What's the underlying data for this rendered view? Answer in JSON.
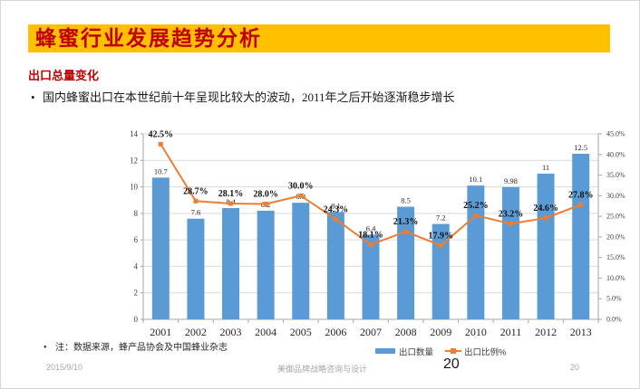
{
  "slide": {
    "title": "蜂蜜行业发展趋势分析",
    "section_heading": "出口总量变化",
    "bullet_text": "国内蜂蜜出口在本世纪前十年呈现比较大的波动，2011年之后开始逐渐稳步增长",
    "note_text": "注：数据来源，蜂产品协会及中国蜂业杂志",
    "footer": {
      "date": "2015/9/10",
      "company": "美御品牌战略咨询与设计",
      "page_number": "20",
      "slide_number": "20"
    },
    "colors": {
      "title_bar_bg": "#FFC000",
      "title_text": "#C00000",
      "section_heading_text": "#C00000",
      "bar_fill": "#5B9BD5",
      "line_stroke": "#ED7D31",
      "gridline": "#D9D9D9",
      "axis": "#A6A6A6"
    }
  },
  "chart_data": {
    "type": "bar+line",
    "subtype": "combo chart: bars on left value axis, line with square markers on right percent axis",
    "categories": [
      "2001",
      "2002",
      "2003",
      "2004",
      "2005",
      "2006",
      "2007",
      "2008",
      "2009",
      "2010",
      "2011",
      "2012",
      "2013"
    ],
    "series": [
      {
        "name": "出口数量",
        "chart": "bar",
        "axis": "left",
        "color": "#5B9BD5",
        "values": [
          10.7,
          7.6,
          8.4,
          8.2,
          8.8,
          8.1,
          6.4,
          8.5,
          7.2,
          10.1,
          9.98,
          11,
          12.5
        ],
        "labels": [
          "10.7",
          "7.6",
          "8.4",
          "8.2",
          "8.8",
          "8.1",
          "6.4",
          "8.5",
          "7.2",
          "10.1",
          "9.98",
          "11",
          "12.5"
        ]
      },
      {
        "name": "出口比例%",
        "chart": "line",
        "axis": "right",
        "color": "#ED7D31",
        "values": [
          42.5,
          28.7,
          28.1,
          28.0,
          30.0,
          24.3,
          18.1,
          21.3,
          17.9,
          25.2,
          23.2,
          24.6,
          27.8
        ],
        "labels": [
          "42.5%",
          "28.7%",
          "28.1%",
          "28.0%",
          "30.0%",
          "24.3%",
          "18.1%",
          "21.3%",
          "17.9%",
          "25.2%",
          "23.2%",
          "24.6%",
          "27.8%"
        ]
      }
    ],
    "left_axis": {
      "min": 0,
      "max": 14,
      "step": 2,
      "ticks": [
        "0",
        "2",
        "4",
        "6",
        "8",
        "10",
        "12",
        "14"
      ]
    },
    "right_axis": {
      "min": 0,
      "max": 45,
      "step": 5,
      "ticks": [
        "0.0%",
        "5.0%",
        "10.0%",
        "15.0%",
        "20.0%",
        "25.0%",
        "30.0%",
        "35.0%",
        "40.0%",
        "45.0%"
      ]
    },
    "legend": {
      "position": "bottom",
      "entries": [
        "出口数量",
        "出口比例%"
      ]
    },
    "grid": true,
    "title": "",
    "xlabel": "",
    "ylabel": ""
  }
}
